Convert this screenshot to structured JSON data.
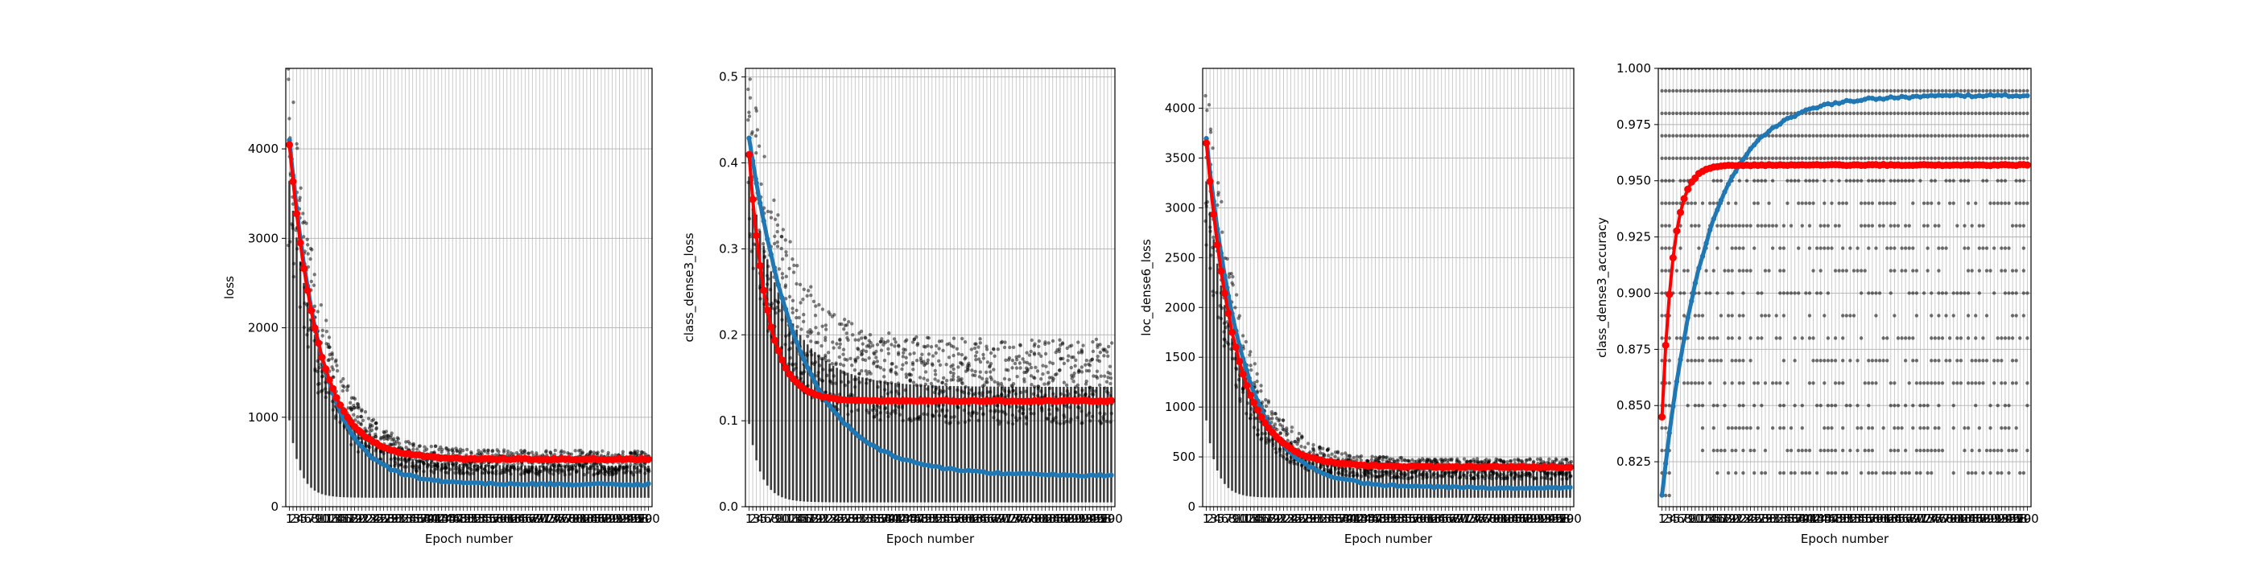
{
  "chart_data": [
    {
      "type": "scatter",
      "xlabel": "Epoch number",
      "ylabel": "loss",
      "yticks": [
        0,
        1000,
        2000,
        3000,
        4000
      ],
      "ylim": [
        0,
        4900
      ],
      "xlim": [
        0,
        101
      ],
      "grid": true,
      "series": [
        {
          "values_start": 4100,
          "values_end": 250,
          "decay": 9,
          "color": "#1f77b4"
        },
        {
          "values_start": 4050,
          "values_end": 530,
          "decay": 8,
          "color": "#ff0000"
        }
      ],
      "spread": {
        "low_end": 100,
        "high_end": 560,
        "high_start": 4900,
        "decay": 9
      }
    },
    {
      "type": "scatter",
      "xlabel": "Epoch number",
      "ylabel": "class_dense3_loss",
      "yticks": [
        0.0,
        0.1,
        0.2,
        0.3,
        0.4,
        0.5
      ],
      "ylim": [
        0,
        0.51
      ],
      "xlim": [
        0,
        101
      ],
      "grid": true,
      "series": [
        {
          "values_start": 0.43,
          "values_end": 0.036,
          "decay": 14,
          "color": "#1f77b4"
        },
        {
          "values_start": 0.41,
          "values_end": 0.123,
          "decay": 5,
          "color": "#ff0000"
        }
      ],
      "spread": {
        "low_end": 0.005,
        "high_end": 0.17,
        "high_start": 0.5,
        "decay": 10
      }
    },
    {
      "type": "scatter",
      "xlabel": "Epoch number",
      "ylabel": "loc_dense6_loss",
      "yticks": [
        0,
        500,
        1000,
        1500,
        2000,
        2500,
        3000,
        3500,
        4000
      ],
      "ylim": [
        0,
        4400
      ],
      "xlim": [
        0,
        101
      ],
      "grid": true,
      "series": [
        {
          "values_start": 3700,
          "values_end": 190,
          "decay": 10,
          "color": "#1f77b4"
        },
        {
          "values_start": 3650,
          "values_end": 400,
          "decay": 8,
          "color": "#ff0000"
        }
      ],
      "spread": {
        "low_end": 90,
        "high_end": 430,
        "high_start": 4400,
        "decay": 9
      }
    },
    {
      "type": "scatter",
      "xlabel": "Epoch number",
      "ylabel": "class_dense3_accuracy",
      "yticks": [
        0.825,
        0.85,
        0.875,
        0.9,
        0.925,
        0.95,
        0.975,
        1.0
      ],
      "ylim": [
        0.805,
        1.0
      ],
      "xlim": [
        0,
        101
      ],
      "grid": true,
      "series": [
        {
          "values_start": 0.81,
          "values_end": 0.988,
          "decay": 12,
          "color": "#1f77b4"
        },
        {
          "values_start": 0.845,
          "values_end": 0.957,
          "decay": 3,
          "color": "#ff0000"
        }
      ],
      "levels": [
        0.81,
        0.82,
        0.83,
        0.84,
        0.85,
        0.86,
        0.87,
        0.88,
        0.89,
        0.9,
        0.91,
        0.92,
        0.93,
        0.94,
        0.95,
        0.96,
        0.97,
        0.98,
        0.99,
        1.0
      ]
    }
  ],
  "colors": {
    "train": "#1f77b4",
    "validation": "#ff0000",
    "points": "#000000",
    "grid": "#b0b0b0"
  }
}
